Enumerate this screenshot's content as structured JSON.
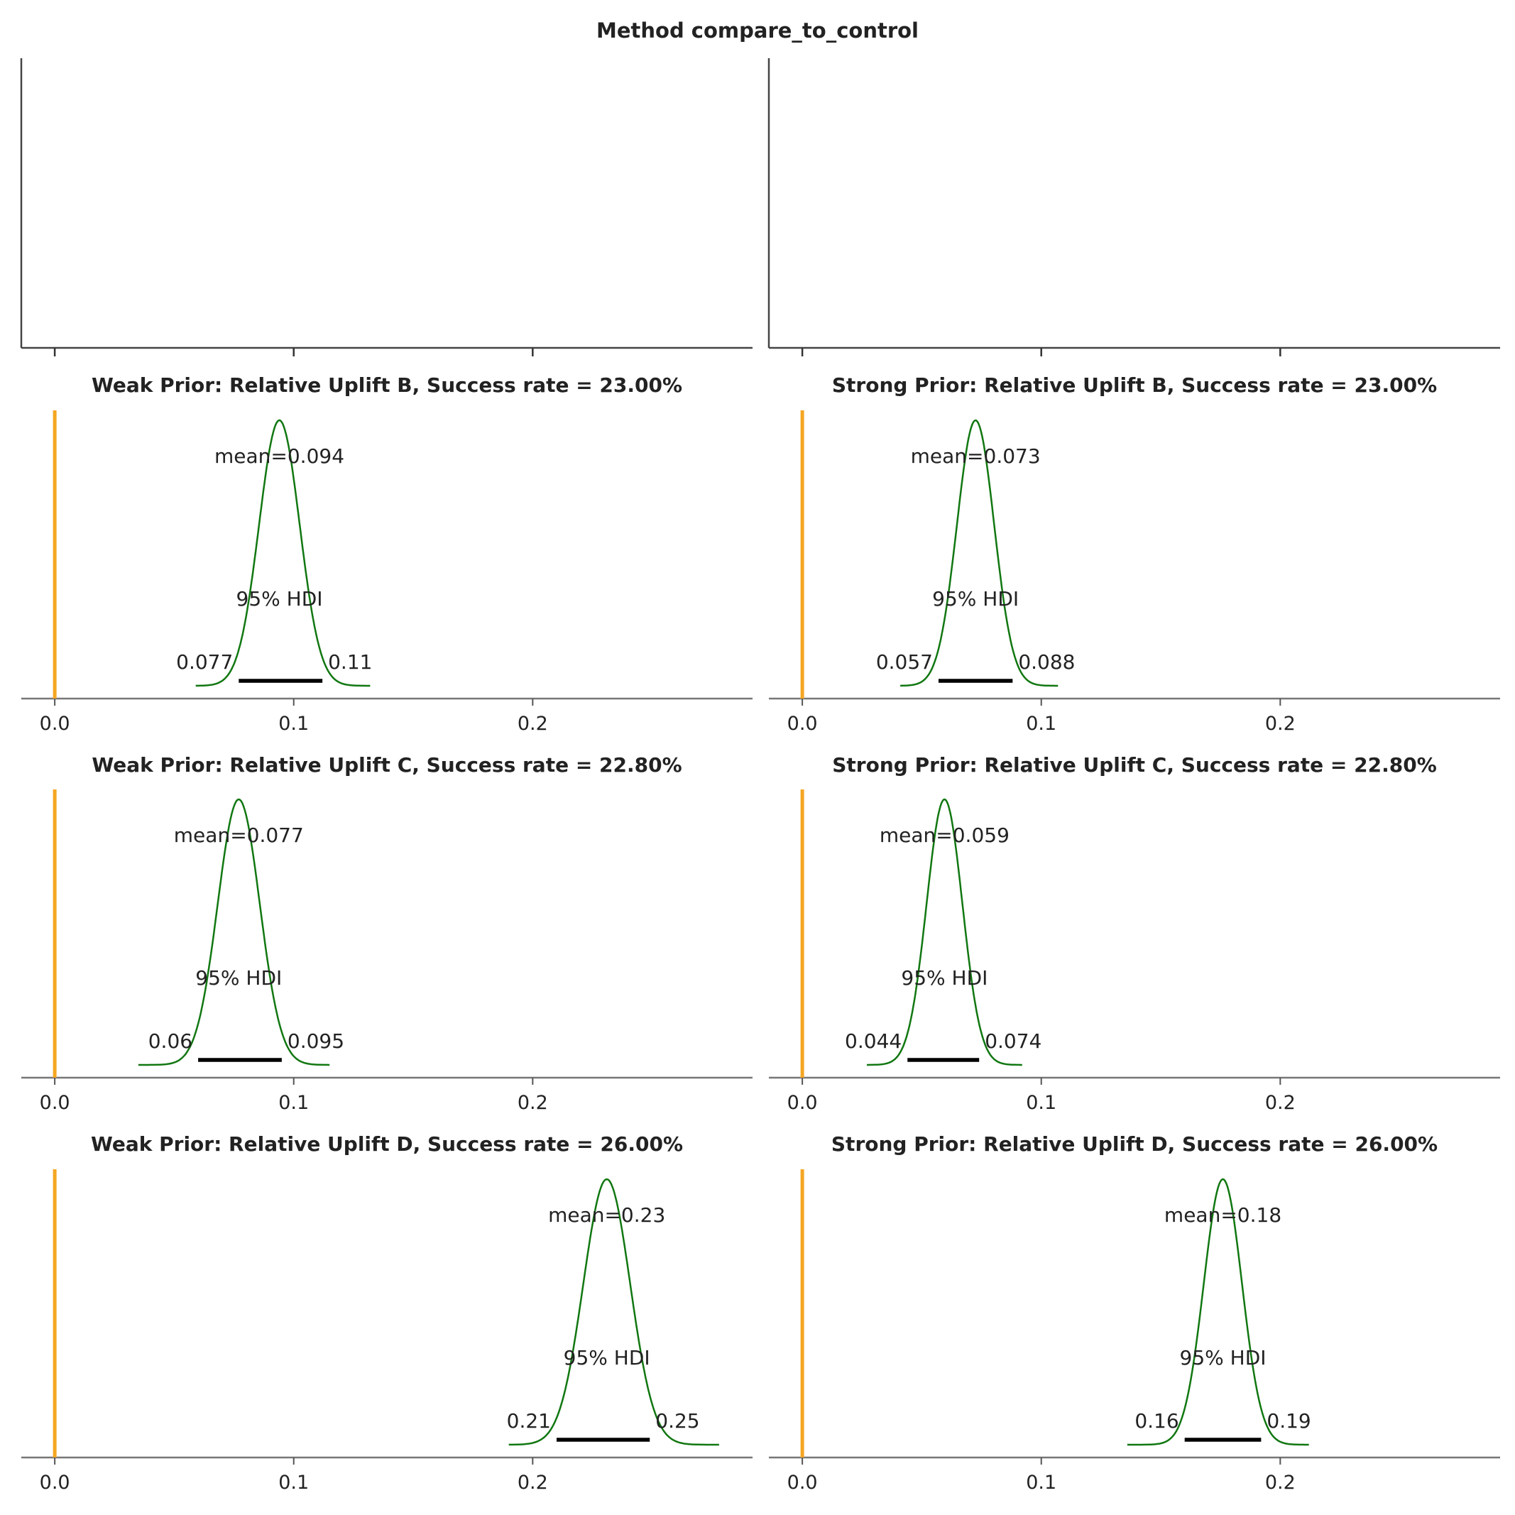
{
  "figure": {
    "suptitle": "Method compare_to_control"
  },
  "chart_data": [
    {
      "type": "blank",
      "title": "",
      "xlim": [
        -0.014,
        0.292
      ],
      "xticks": [
        0.0,
        0.1,
        0.2
      ],
      "tick_labels_shown": false,
      "left_spine": true
    },
    {
      "type": "blank",
      "title": "",
      "xlim": [
        -0.014,
        0.292
      ],
      "xticks": [
        0.0,
        0.1,
        0.2
      ],
      "tick_labels_shown": false,
      "left_spine": true
    },
    {
      "type": "line",
      "title": "Weak Prior: Relative Uplift B, Success rate = 23.00%",
      "xlim": [
        -0.014,
        0.292
      ],
      "xticks": [
        0.0,
        0.1,
        0.2
      ],
      "xticklabels": [
        "0.0",
        "0.1",
        "0.2"
      ],
      "ref_val": 0.0,
      "kde": {
        "mean": 0.094,
        "sd": 0.0085,
        "x_min": 0.059,
        "x_max": 0.132
      },
      "mean_label": "mean=0.094",
      "hdi": [
        0.077,
        0.112
      ],
      "hdi_label": "95% HDI",
      "hdi_low_label": "0.077",
      "hdi_high_label": "0.11",
      "line_color": "#117711",
      "ref_color": "#f5a623"
    },
    {
      "type": "line",
      "title": "Strong Prior: Relative Uplift B, Success rate = 23.00%",
      "xlim": [
        -0.014,
        0.292
      ],
      "xticks": [
        0.0,
        0.1,
        0.2
      ],
      "xticklabels": [
        "0.0",
        "0.1",
        "0.2"
      ],
      "ref_val": 0.0,
      "kde": {
        "mean": 0.0725,
        "sd": 0.0078,
        "x_min": 0.041,
        "x_max": 0.107
      },
      "mean_label": "mean=0.073",
      "hdi": [
        0.057,
        0.088
      ],
      "hdi_label": "95% HDI",
      "hdi_low_label": "0.057",
      "hdi_high_label": "0.088",
      "line_color": "#117711",
      "ref_color": "#f5a623"
    },
    {
      "type": "line",
      "title": "Weak Prior: Relative Uplift C, Success rate = 22.80%",
      "xlim": [
        -0.014,
        0.292
      ],
      "xticks": [
        0.0,
        0.1,
        0.2
      ],
      "xticklabels": [
        "0.0",
        "0.1",
        "0.2"
      ],
      "ref_val": 0.0,
      "kde": {
        "mean": 0.077,
        "sd": 0.0088,
        "x_min": 0.035,
        "x_max": 0.115
      },
      "mean_label": "mean=0.077",
      "hdi": [
        0.06,
        0.095
      ],
      "hdi_label": "95% HDI",
      "hdi_low_label": "0.06",
      "hdi_high_label": "0.095",
      "line_color": "#117711",
      "ref_color": "#f5a623"
    },
    {
      "type": "line",
      "title": "Strong Prior: Relative Uplift C, Success rate = 22.80%",
      "xlim": [
        -0.014,
        0.292
      ],
      "xticks": [
        0.0,
        0.1,
        0.2
      ],
      "xticklabels": [
        "0.0",
        "0.1",
        "0.2"
      ],
      "ref_val": 0.0,
      "kde": {
        "mean": 0.0595,
        "sd": 0.0075,
        "x_min": 0.027,
        "x_max": 0.092
      },
      "mean_label": "mean=0.059",
      "hdi": [
        0.044,
        0.074
      ],
      "hdi_label": "95% HDI",
      "hdi_low_label": "0.044",
      "hdi_high_label": "0.074",
      "line_color": "#117711",
      "ref_color": "#f5a623"
    },
    {
      "type": "line",
      "title": "Weak Prior: Relative Uplift D, Success rate = 26.00%",
      "xlim": [
        -0.014,
        0.292
      ],
      "xticks": [
        0.0,
        0.1,
        0.2
      ],
      "xticklabels": [
        "0.0",
        "0.1",
        "0.2"
      ],
      "ref_val": 0.0,
      "kde": {
        "mean": 0.231,
        "sd": 0.0098,
        "x_min": 0.19,
        "x_max": 0.278
      },
      "mean_label": "mean=0.23",
      "hdi": [
        0.21,
        0.249
      ],
      "hdi_label": "95% HDI",
      "hdi_low_label": "0.21",
      "hdi_high_label": "0.25",
      "line_color": "#117711",
      "ref_color": "#f5a623"
    },
    {
      "type": "line",
      "title": "Strong Prior: Relative Uplift D, Success rate = 26.00%",
      "xlim": [
        -0.014,
        0.292
      ],
      "xticks": [
        0.0,
        0.1,
        0.2
      ],
      "xticklabels": [
        "0.0",
        "0.1",
        "0.2"
      ],
      "ref_val": 0.0,
      "kde": {
        "mean": 0.176,
        "sd": 0.008,
        "x_min": 0.136,
        "x_max": 0.212
      },
      "mean_label": "mean=0.18",
      "hdi": [
        0.16,
        0.192
      ],
      "hdi_label": "95% HDI",
      "hdi_low_label": "0.16",
      "hdi_high_label": "0.19",
      "line_color": "#117711",
      "ref_color": "#f5a623"
    }
  ]
}
